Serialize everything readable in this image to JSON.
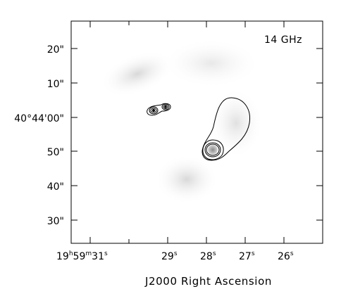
{
  "panel": {
    "frequency_label": "14 GHz",
    "x_axis_title": "J2000 Right Ascension",
    "y_tick_labels": [
      "20\"",
      "10\"",
      "40°44'00\"",
      "50\"",
      "40\"",
      "30\""
    ],
    "x_tick_labels": [
      {
        "h": "19",
        "m": "59",
        "s": "31"
      },
      {
        "s": "29"
      },
      {
        "s": "28"
      },
      {
        "s": "27"
      },
      {
        "s": "26"
      }
    ]
  },
  "colors": {
    "frame": "#000000",
    "contour": "#000000",
    "background": "#ffffff",
    "emission_haze": "#d8d8d8"
  }
}
